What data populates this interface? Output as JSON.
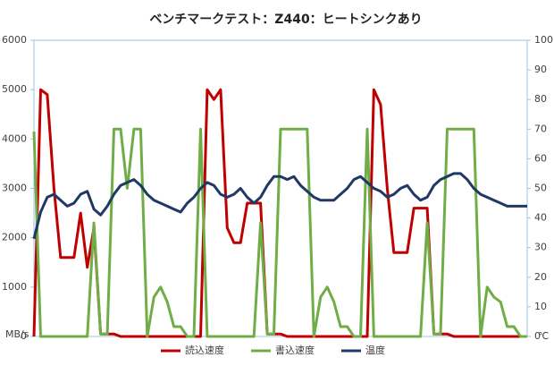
{
  "chart_data": {
    "type": "line",
    "title": "ベンチマークテスト：Z440：ヒートシンクあり",
    "y_unit": "MB/s",
    "y2_unit": "℃",
    "categories": [
      null,
      null,
      null,
      null,
      null,
      null,
      null,
      null,
      null,
      null,
      null,
      null,
      null,
      null,
      null,
      null,
      null,
      null,
      null,
      null,
      null,
      null,
      null,
      null,
      null,
      null,
      null,
      null,
      null,
      null,
      null,
      null,
      null,
      null,
      null,
      null,
      null,
      null,
      null,
      null,
      null,
      null,
      null,
      null,
      null,
      null,
      null,
      null,
      null,
      null,
      null,
      null,
      null,
      null,
      null,
      null,
      null,
      null,
      null,
      null,
      null,
      null,
      null,
      null,
      null,
      null,
      null,
      null,
      null,
      null,
      null,
      null,
      null,
      null,
      null
    ],
    "series": [
      {
        "name": "読込速度",
        "color": "#c00000",
        "values": [
          0,
          5000,
          4900,
          3000,
          1600,
          1600,
          1600,
          2500,
          1400,
          2200,
          50,
          50,
          50,
          0,
          0,
          0,
          0,
          0,
          0,
          0,
          0,
          0,
          0,
          0,
          0,
          0,
          5000,
          4800,
          5000,
          2200,
          1900,
          1900,
          2700,
          2700,
          2700,
          50,
          50,
          50,
          0,
          0,
          0,
          0,
          0,
          0,
          0,
          0,
          0,
          0,
          0,
          0,
          0,
          5000,
          4700,
          3000,
          1700,
          1700,
          1700,
          2600,
          2600,
          2600,
          50,
          50,
          50,
          0,
          0,
          0,
          0,
          0,
          0,
          0,
          0,
          0,
          0,
          0,
          0
        ]
      },
      {
        "name": "書込速度",
        "color": "#70ad47",
        "values": [
          4150,
          0,
          0,
          0,
          0,
          0,
          0,
          0,
          0,
          2300,
          50,
          50,
          4200,
          4200,
          3000,
          4200,
          4200,
          0,
          800,
          1000,
          700,
          200,
          200,
          0,
          0,
          4200,
          0,
          0,
          0,
          0,
          0,
          0,
          0,
          0,
          2300,
          50,
          50,
          4200,
          4200,
          4200,
          4200,
          4200,
          0,
          800,
          1000,
          700,
          200,
          200,
          0,
          0,
          4200,
          0,
          0,
          0,
          0,
          0,
          0,
          0,
          0,
          2300,
          50,
          50,
          4200,
          4200,
          4200,
          4200,
          4200,
          0,
          1000,
          800,
          700,
          200,
          200,
          0,
          0
        ]
      },
      {
        "name": "温度",
        "color": "#1f3864",
        "axis": "y2",
        "values": [
          33,
          42,
          47,
          48,
          46,
          44,
          45,
          48,
          49,
          43,
          41,
          44,
          48,
          51,
          52,
          53,
          51,
          48,
          46,
          45,
          44,
          43,
          42,
          45,
          47,
          50,
          52,
          51,
          48,
          47,
          48,
          50,
          47,
          45,
          47,
          51,
          54,
          54,
          53,
          54,
          51,
          49,
          47,
          46,
          46,
          46,
          48,
          50,
          53,
          54,
          52,
          50,
          49,
          47,
          48,
          50,
          51,
          48,
          46,
          47,
          51,
          53,
          54,
          55,
          55,
          53,
          50,
          48,
          47,
          46,
          45,
          44,
          44,
          44,
          44
        ]
      }
    ],
    "ylim": [
      0,
      6000
    ],
    "yticks": [
      0,
      1000,
      2000,
      3000,
      4000,
      5000,
      6000
    ],
    "y2lim": [
      0,
      100
    ],
    "y2ticks": [
      0,
      10,
      20,
      30,
      40,
      50,
      60,
      70,
      80,
      90,
      100
    ],
    "legend": "bottom"
  }
}
